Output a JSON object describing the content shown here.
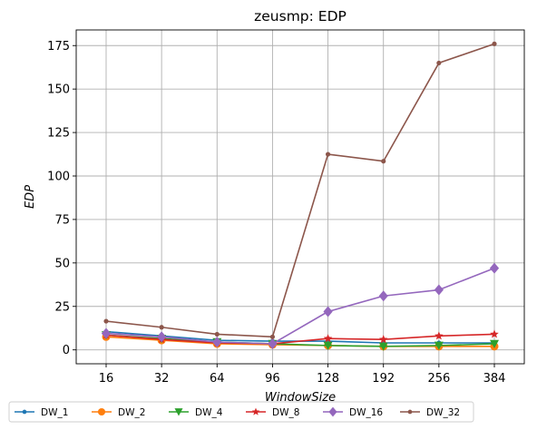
{
  "chart_data": {
    "type": "line",
    "title": "zeusmp: EDP",
    "xlabel": "WindowSize",
    "ylabel": "EDP",
    "categories": [
      "16",
      "32",
      "64",
      "96",
      "128",
      "192",
      "256",
      "384"
    ],
    "ylim": [
      -8,
      184
    ],
    "yticks": [
      0,
      25,
      50,
      75,
      100,
      125,
      150,
      175
    ],
    "grid": true,
    "legend_position": "bottom",
    "series": [
      {
        "name": "DW_1",
        "color": "#1f77b4",
        "marker": "point",
        "values": [
          10.5,
          8.0,
          5.5,
          5.0,
          5.0,
          4.0,
          4.0,
          4.0
        ]
      },
      {
        "name": "DW_2",
        "color": "#ff7f0e",
        "marker": "circle",
        "values": [
          7.5,
          5.5,
          3.5,
          3.0,
          2.5,
          2.0,
          2.0,
          2.0
        ]
      },
      {
        "name": "DW_4",
        "color": "#2ca02c",
        "marker": "triangle",
        "values": [
          8.5,
          6.5,
          4.5,
          3.5,
          2.5,
          2.0,
          2.5,
          3.5
        ]
      },
      {
        "name": "DW_8",
        "color": "#d62728",
        "marker": "star",
        "values": [
          8.5,
          6.0,
          4.0,
          3.5,
          6.5,
          6.0,
          8.0,
          9.0
        ]
      },
      {
        "name": "DW_16",
        "color": "#9467bd",
        "marker": "diamond",
        "values": [
          9.5,
          7.5,
          4.5,
          3.5,
          22.0,
          31.0,
          34.5,
          47.0
        ]
      },
      {
        "name": "DW_32",
        "color": "#8c564b",
        "marker": "point",
        "values": [
          16.5,
          13.0,
          9.0,
          7.5,
          112.5,
          108.5,
          165.0,
          176.0
        ]
      }
    ]
  }
}
